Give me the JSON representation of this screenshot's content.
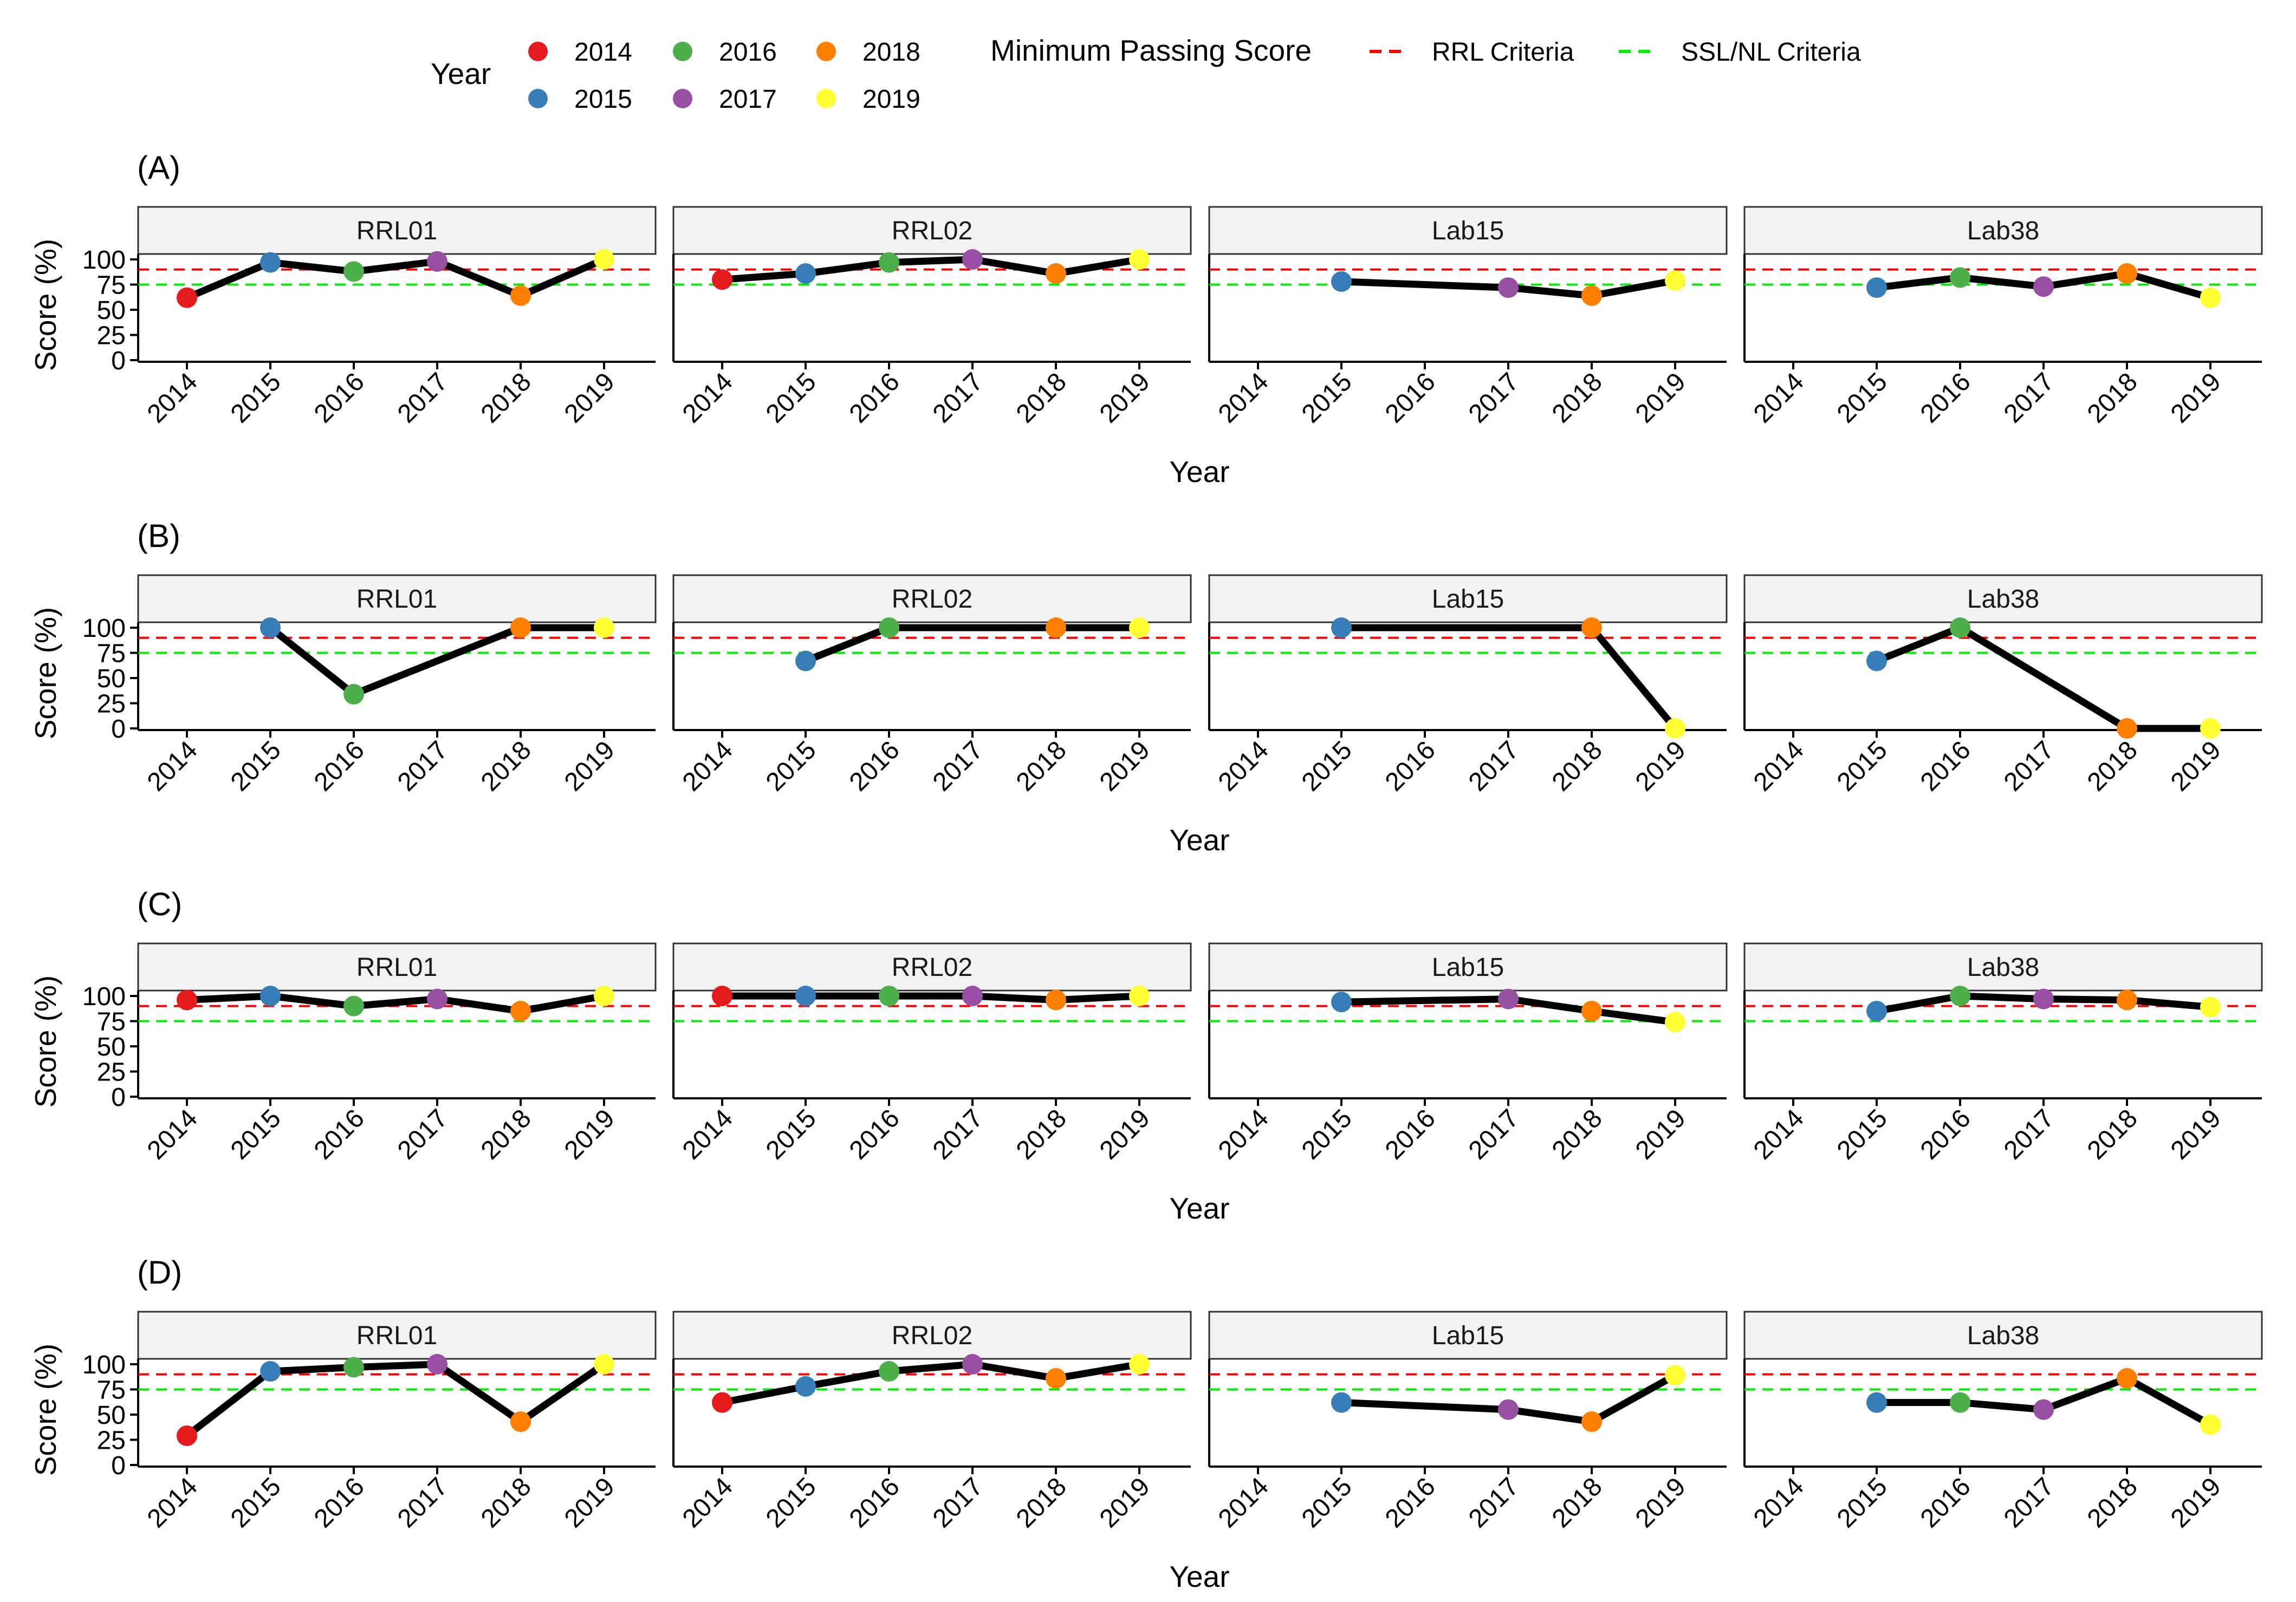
{
  "legend": {
    "year_title": "Year",
    "years": [
      {
        "label": "2014",
        "color": "#e41a1c"
      },
      {
        "label": "2015",
        "color": "#377eb8"
      },
      {
        "label": "2016",
        "color": "#4daf4a"
      },
      {
        "label": "2017",
        "color": "#984ea3"
      },
      {
        "label": "2018",
        "color": "#ff7f00"
      },
      {
        "label": "2019",
        "color": "#ffff33"
      }
    ],
    "passing_title": "Minimum Passing Score",
    "criteria": [
      {
        "label": "RRL Criteria",
        "color": "#ff0000"
      },
      {
        "label": "SSL/NL Criteria",
        "color": "#00ee00"
      }
    ]
  },
  "chart_data": {
    "type": "line",
    "xlabel": "Year",
    "ylabel": "Score (%)",
    "categories": [
      "2014",
      "2015",
      "2016",
      "2017",
      "2018",
      "2019"
    ],
    "yticks": [
      0,
      25,
      50,
      75,
      100
    ],
    "ylim": [
      0,
      100
    ],
    "thresholds": {
      "rrl": 90,
      "ssl_nl": 75
    },
    "facets": [
      "RRL01",
      "RRL02",
      "Lab15",
      "Lab38"
    ],
    "panels": [
      {
        "label": "(A)",
        "series": [
          {
            "name": "RRL01",
            "values": [
              62,
              97,
              88,
              98,
              64,
              100
            ]
          },
          {
            "name": "RRL02",
            "values": [
              80,
              86,
              97,
              100,
              86,
              100
            ]
          },
          {
            "name": "Lab15",
            "values": [
              null,
              78,
              null,
              72,
              64,
              79
            ]
          },
          {
            "name": "Lab38",
            "values": [
              null,
              72,
              82,
              73,
              86,
              62
            ]
          }
        ]
      },
      {
        "label": "(B)",
        "series": [
          {
            "name": "RRL01",
            "values": [
              null,
              100,
              34,
              null,
              100,
              100
            ]
          },
          {
            "name": "RRL02",
            "values": [
              null,
              67,
              100,
              null,
              100,
              100
            ]
          },
          {
            "name": "Lab15",
            "values": [
              null,
              100,
              null,
              null,
              100,
              0
            ]
          },
          {
            "name": "Lab38",
            "values": [
              null,
              67,
              100,
              null,
              0,
              0
            ]
          }
        ]
      },
      {
        "label": "(C)",
        "series": [
          {
            "name": "RRL01",
            "values": [
              96,
              100,
              90,
              97,
              85,
              100
            ]
          },
          {
            "name": "RRL02",
            "values": [
              100,
              100,
              100,
              100,
              96,
              100
            ]
          },
          {
            "name": "Lab15",
            "values": [
              null,
              94,
              null,
              97,
              85,
              74
            ]
          },
          {
            "name": "Lab38",
            "values": [
              null,
              85,
              100,
              97,
              96,
              89
            ]
          }
        ]
      },
      {
        "label": "(D)",
        "series": [
          {
            "name": "RRL01",
            "values": [
              29,
              93,
              97,
              100,
              43,
              100
            ]
          },
          {
            "name": "RRL02",
            "values": [
              62,
              78,
              93,
              100,
              86,
              100
            ]
          },
          {
            "name": "Lab15",
            "values": [
              null,
              62,
              null,
              55,
              43,
              89
            ]
          },
          {
            "name": "Lab38",
            "values": [
              null,
              62,
              62,
              55,
              86,
              40
            ]
          }
        ]
      }
    ]
  }
}
